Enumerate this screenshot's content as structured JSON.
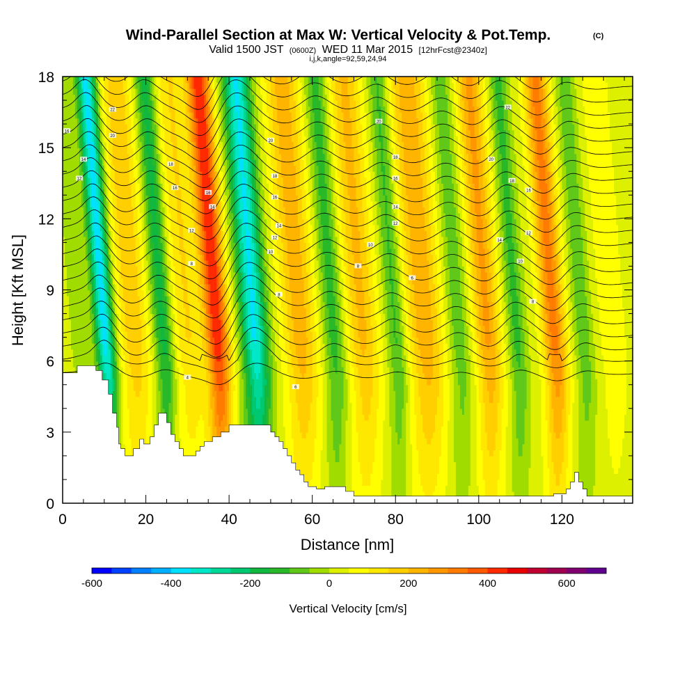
{
  "header": {
    "title": "Wind-Parallel Section at Max W: Vertical Velocity & Pot.Temp.",
    "copyright": "(C)",
    "valid_prefix": "Valid 1500 JST",
    "valid_utc": "(0600Z)",
    "valid_date": "WED 11 Mar 2015",
    "forecast": "[12hrFcst@2340z]",
    "indices": "i,j,k,angle=92,59,24,94"
  },
  "chart_data": {
    "type": "contour-cross-section",
    "title": "Wind-Parallel Section at Max W: Vertical Velocity & Pot.Temp.",
    "xlabel": "Distance [nm]",
    "ylabel": "Height [Kft MSL]",
    "xlim": [
      0,
      137
    ],
    "ylim": [
      0,
      18
    ],
    "x_ticks": [
      0,
      20,
      40,
      60,
      80,
      100,
      120
    ],
    "y_ticks": [
      0,
      3,
      6,
      9,
      12,
      15,
      18
    ],
    "colorbar": {
      "label": "Vertical Velocity [cm/s]",
      "range": [
        -600,
        700
      ],
      "tick_values": [
        -600,
        -400,
        -200,
        0,
        200,
        400,
        600
      ],
      "colors": [
        "#0000ff",
        "#0040ff",
        "#0080ff",
        "#00b0ff",
        "#00e0ff",
        "#00e8c8",
        "#00d898",
        "#00c870",
        "#10b840",
        "#28b828",
        "#60c818",
        "#a0dc00",
        "#ddf000",
        "#ffff00",
        "#ffe800",
        "#ffcf00",
        "#ffb400",
        "#ff9800",
        "#ff7c00",
        "#ff5a00",
        "#ff2a00",
        "#e80000",
        "#c00030",
        "#a00050",
        "#800070",
        "#600090"
      ]
    },
    "vertical_velocity_bands": [
      {
        "x": 5,
        "w": 1.5,
        "peak": -60
      },
      {
        "x": 11,
        "w": 1.6,
        "peak": -400
      },
      {
        "x": 18,
        "w": 2.5,
        "peak": 170
      },
      {
        "x": 25,
        "w": 1.6,
        "peak": -200
      },
      {
        "x": 31,
        "w": 2.5,
        "peak": 130
      },
      {
        "x": 38,
        "w": 2.0,
        "peak": 420
      },
      {
        "x": 47,
        "w": 2.2,
        "peak": -380
      },
      {
        "x": 58,
        "w": 2.8,
        "peak": 210
      },
      {
        "x": 66,
        "w": 1.8,
        "peak": -150
      },
      {
        "x": 73,
        "w": 2.6,
        "peak": 190
      },
      {
        "x": 81,
        "w": 1.6,
        "peak": -140
      },
      {
        "x": 88,
        "w": 3.0,
        "peak": 220
      },
      {
        "x": 96,
        "w": 1.8,
        "peak": -110
      },
      {
        "x": 103,
        "w": 2.2,
        "peak": 240
      },
      {
        "x": 110,
        "w": 1.5,
        "peak": -140
      },
      {
        "x": 119,
        "w": 2.0,
        "peak": 300
      },
      {
        "x": 126,
        "w": 1.6,
        "peak": -110
      },
      {
        "x": 133,
        "w": 2.5,
        "peak": 60
      }
    ],
    "terrain": [
      [
        0,
        5.5
      ],
      [
        3.5,
        5.5
      ],
      [
        3.5,
        5.8
      ],
      [
        8,
        5.8
      ],
      [
        8,
        5.6
      ],
      [
        9.5,
        5.6
      ],
      [
        9.5,
        5.2
      ],
      [
        11,
        5.2
      ],
      [
        11,
        4.6
      ],
      [
        12,
        4.6
      ],
      [
        12,
        3.8
      ],
      [
        13,
        3.8
      ],
      [
        13,
        3.2
      ],
      [
        13.5,
        3.2
      ],
      [
        13.5,
        2.5
      ],
      [
        14,
        2.5
      ],
      [
        14,
        2.3
      ],
      [
        15,
        2.3
      ],
      [
        15,
        2.0
      ],
      [
        17,
        2.0
      ],
      [
        17,
        2.3
      ],
      [
        18.5,
        2.3
      ],
      [
        18.5,
        2.7
      ],
      [
        19.5,
        2.7
      ],
      [
        19.5,
        2.5
      ],
      [
        21,
        2.5
      ],
      [
        21,
        2.8
      ],
      [
        22,
        2.8
      ],
      [
        22,
        3.3
      ],
      [
        23,
        3.3
      ],
      [
        23,
        3.8
      ],
      [
        25,
        3.8
      ],
      [
        25,
        3.4
      ],
      [
        26,
        3.4
      ],
      [
        26,
        2.9
      ],
      [
        27,
        2.9
      ],
      [
        27,
        2.6
      ],
      [
        28,
        2.6
      ],
      [
        28,
        2.3
      ],
      [
        29,
        2.3
      ],
      [
        29,
        2.0
      ],
      [
        32,
        2.0
      ],
      [
        32,
        2.2
      ],
      [
        33,
        2.2
      ],
      [
        33,
        2.4
      ],
      [
        34,
        2.4
      ],
      [
        34,
        2.6
      ],
      [
        36,
        2.6
      ],
      [
        36,
        2.8
      ],
      [
        38,
        2.8
      ],
      [
        38,
        3.0
      ],
      [
        40,
        3.0
      ],
      [
        40,
        3.3
      ],
      [
        50,
        3.3
      ],
      [
        50,
        3.0
      ],
      [
        51,
        3.0
      ],
      [
        51,
        2.8
      ],
      [
        52,
        2.8
      ],
      [
        52,
        2.6
      ],
      [
        53,
        2.6
      ],
      [
        53,
        2.3
      ],
      [
        54,
        2.3
      ],
      [
        54,
        2.0
      ],
      [
        55,
        2.0
      ],
      [
        55,
        1.7
      ],
      [
        56,
        1.7
      ],
      [
        56,
        1.4
      ],
      [
        57,
        1.4
      ],
      [
        57,
        1.2
      ],
      [
        58,
        1.2
      ],
      [
        58,
        0.9
      ],
      [
        59,
        0.9
      ],
      [
        59,
        0.7
      ],
      [
        61,
        0.7
      ],
      [
        61,
        0.6
      ],
      [
        63,
        0.6
      ],
      [
        63,
        0.7
      ],
      [
        68,
        0.7
      ],
      [
        68,
        0.5
      ],
      [
        70,
        0.5
      ],
      [
        70,
        0.3
      ],
      [
        82,
        0.3
      ],
      [
        82,
        0.3
      ],
      [
        118,
        0.3
      ],
      [
        118,
        0.4
      ],
      [
        121,
        0.4
      ],
      [
        121,
        0.6
      ],
      [
        122,
        0.6
      ],
      [
        122,
        0.9
      ],
      [
        123,
        0.9
      ],
      [
        123,
        1.3
      ],
      [
        124,
        1.3
      ],
      [
        124,
        0.9
      ],
      [
        125,
        0.9
      ],
      [
        125,
        0.6
      ],
      [
        126,
        0.6
      ],
      [
        126,
        0.3
      ],
      [
        137,
        0.3
      ],
      [
        137,
        0
      ]
    ],
    "theta_contour_labels": [
      {
        "x": 1,
        "y": 15.7,
        "text": "16"
      },
      {
        "x": 5,
        "y": 14.5,
        "text": "14"
      },
      {
        "x": 4,
        "y": 13.7,
        "text": "12"
      },
      {
        "x": 12,
        "y": 16.6,
        "text": "22"
      },
      {
        "x": 12,
        "y": 15.5,
        "text": "20"
      },
      {
        "x": 26,
        "y": 14.3,
        "text": "18"
      },
      {
        "x": 27,
        "y": 13.3,
        "text": "16"
      },
      {
        "x": 35,
        "y": 13.1,
        "text": "16"
      },
      {
        "x": 36,
        "y": 12.5,
        "text": "14"
      },
      {
        "x": 31,
        "y": 11.5,
        "text": "12"
      },
      {
        "x": 31,
        "y": 10.1,
        "text": "8"
      },
      {
        "x": 30,
        "y": 5.3,
        "text": "4"
      },
      {
        "x": 50,
        "y": 15.3,
        "text": "20"
      },
      {
        "x": 51,
        "y": 13.8,
        "text": "18"
      },
      {
        "x": 51,
        "y": 12.9,
        "text": "16"
      },
      {
        "x": 52,
        "y": 11.7,
        "text": "14"
      },
      {
        "x": 51,
        "y": 11.2,
        "text": "12"
      },
      {
        "x": 50,
        "y": 10.6,
        "text": "10"
      },
      {
        "x": 52,
        "y": 8.8,
        "text": "8"
      },
      {
        "x": 56,
        "y": 4.9,
        "text": "6"
      },
      {
        "x": 76,
        "y": 16.1,
        "text": "20"
      },
      {
        "x": 80,
        "y": 14.6,
        "text": "18"
      },
      {
        "x": 80,
        "y": 13.7,
        "text": "16"
      },
      {
        "x": 80,
        "y": 12.5,
        "text": "14"
      },
      {
        "x": 80,
        "y": 11.8,
        "text": "12"
      },
      {
        "x": 74,
        "y": 10.9,
        "text": "10"
      },
      {
        "x": 71,
        "y": 10.0,
        "text": "8"
      },
      {
        "x": 84,
        "y": 9.5,
        "text": "6"
      },
      {
        "x": 107,
        "y": 16.7,
        "text": "22"
      },
      {
        "x": 103,
        "y": 14.5,
        "text": "20"
      },
      {
        "x": 108,
        "y": 13.6,
        "text": "18"
      },
      {
        "x": 112,
        "y": 13.2,
        "text": "16"
      },
      {
        "x": 105,
        "y": 11.1,
        "text": "14"
      },
      {
        "x": 112,
        "y": 11.4,
        "text": "12"
      },
      {
        "x": 110,
        "y": 10.2,
        "text": "10"
      },
      {
        "x": 113,
        "y": 8.5,
        "text": "8"
      }
    ]
  }
}
